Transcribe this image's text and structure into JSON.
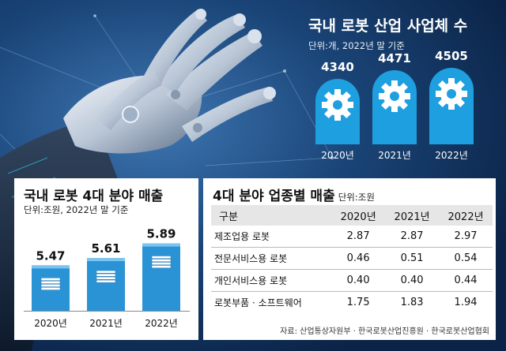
{
  "colors": {
    "accent": "#1e9fe0",
    "navy": "#0e2a4f",
    "gear": "#ffffff"
  },
  "icons": [
    "gear-icon",
    "coin-stack-icon",
    "robot-hand-image"
  ],
  "chart_data": [
    {
      "type": "bar",
      "title": "국내 로봇 산업 사업체 수",
      "unit_note": "단위:개, 2022년 말 기준",
      "categories": [
        "2020년",
        "2021년",
        "2022년"
      ],
      "values": [
        4340,
        4471,
        4505
      ],
      "value_labels": [
        "4340",
        "4471",
        "4505"
      ],
      "ylim": [
        0,
        4600
      ]
    },
    {
      "type": "bar",
      "title": "국내 로봇 4대 분야 매출",
      "unit_note": "단위:조원, 2022년 말 기준",
      "categories": [
        "2020년",
        "2021년",
        "2022년"
      ],
      "values": [
        5.47,
        5.61,
        5.89
      ],
      "value_labels": [
        "5.47",
        "5.61",
        "5.89"
      ],
      "ylim": [
        0,
        6.2
      ]
    },
    {
      "type": "table",
      "title": "4대 분야 업종별 매출",
      "unit_note": "단위:조원",
      "columns": [
        "구분",
        "2020년",
        "2021년",
        "2022년"
      ],
      "rows": [
        [
          "제조업용 로봇",
          "2.87",
          "2.87",
          "2.97"
        ],
        [
          "전문서비스용 로봇",
          "0.46",
          "0.51",
          "0.54"
        ],
        [
          "개인서비스용 로봇",
          "0.40",
          "0.40",
          "0.44"
        ],
        [
          "로봇부품 · 소프트웨어",
          "1.75",
          "1.83",
          "1.94"
        ]
      ]
    }
  ],
  "source": "자료: 산업통상자원부 · 한국로봇산업진흥원 · 한국로봇산업협회"
}
